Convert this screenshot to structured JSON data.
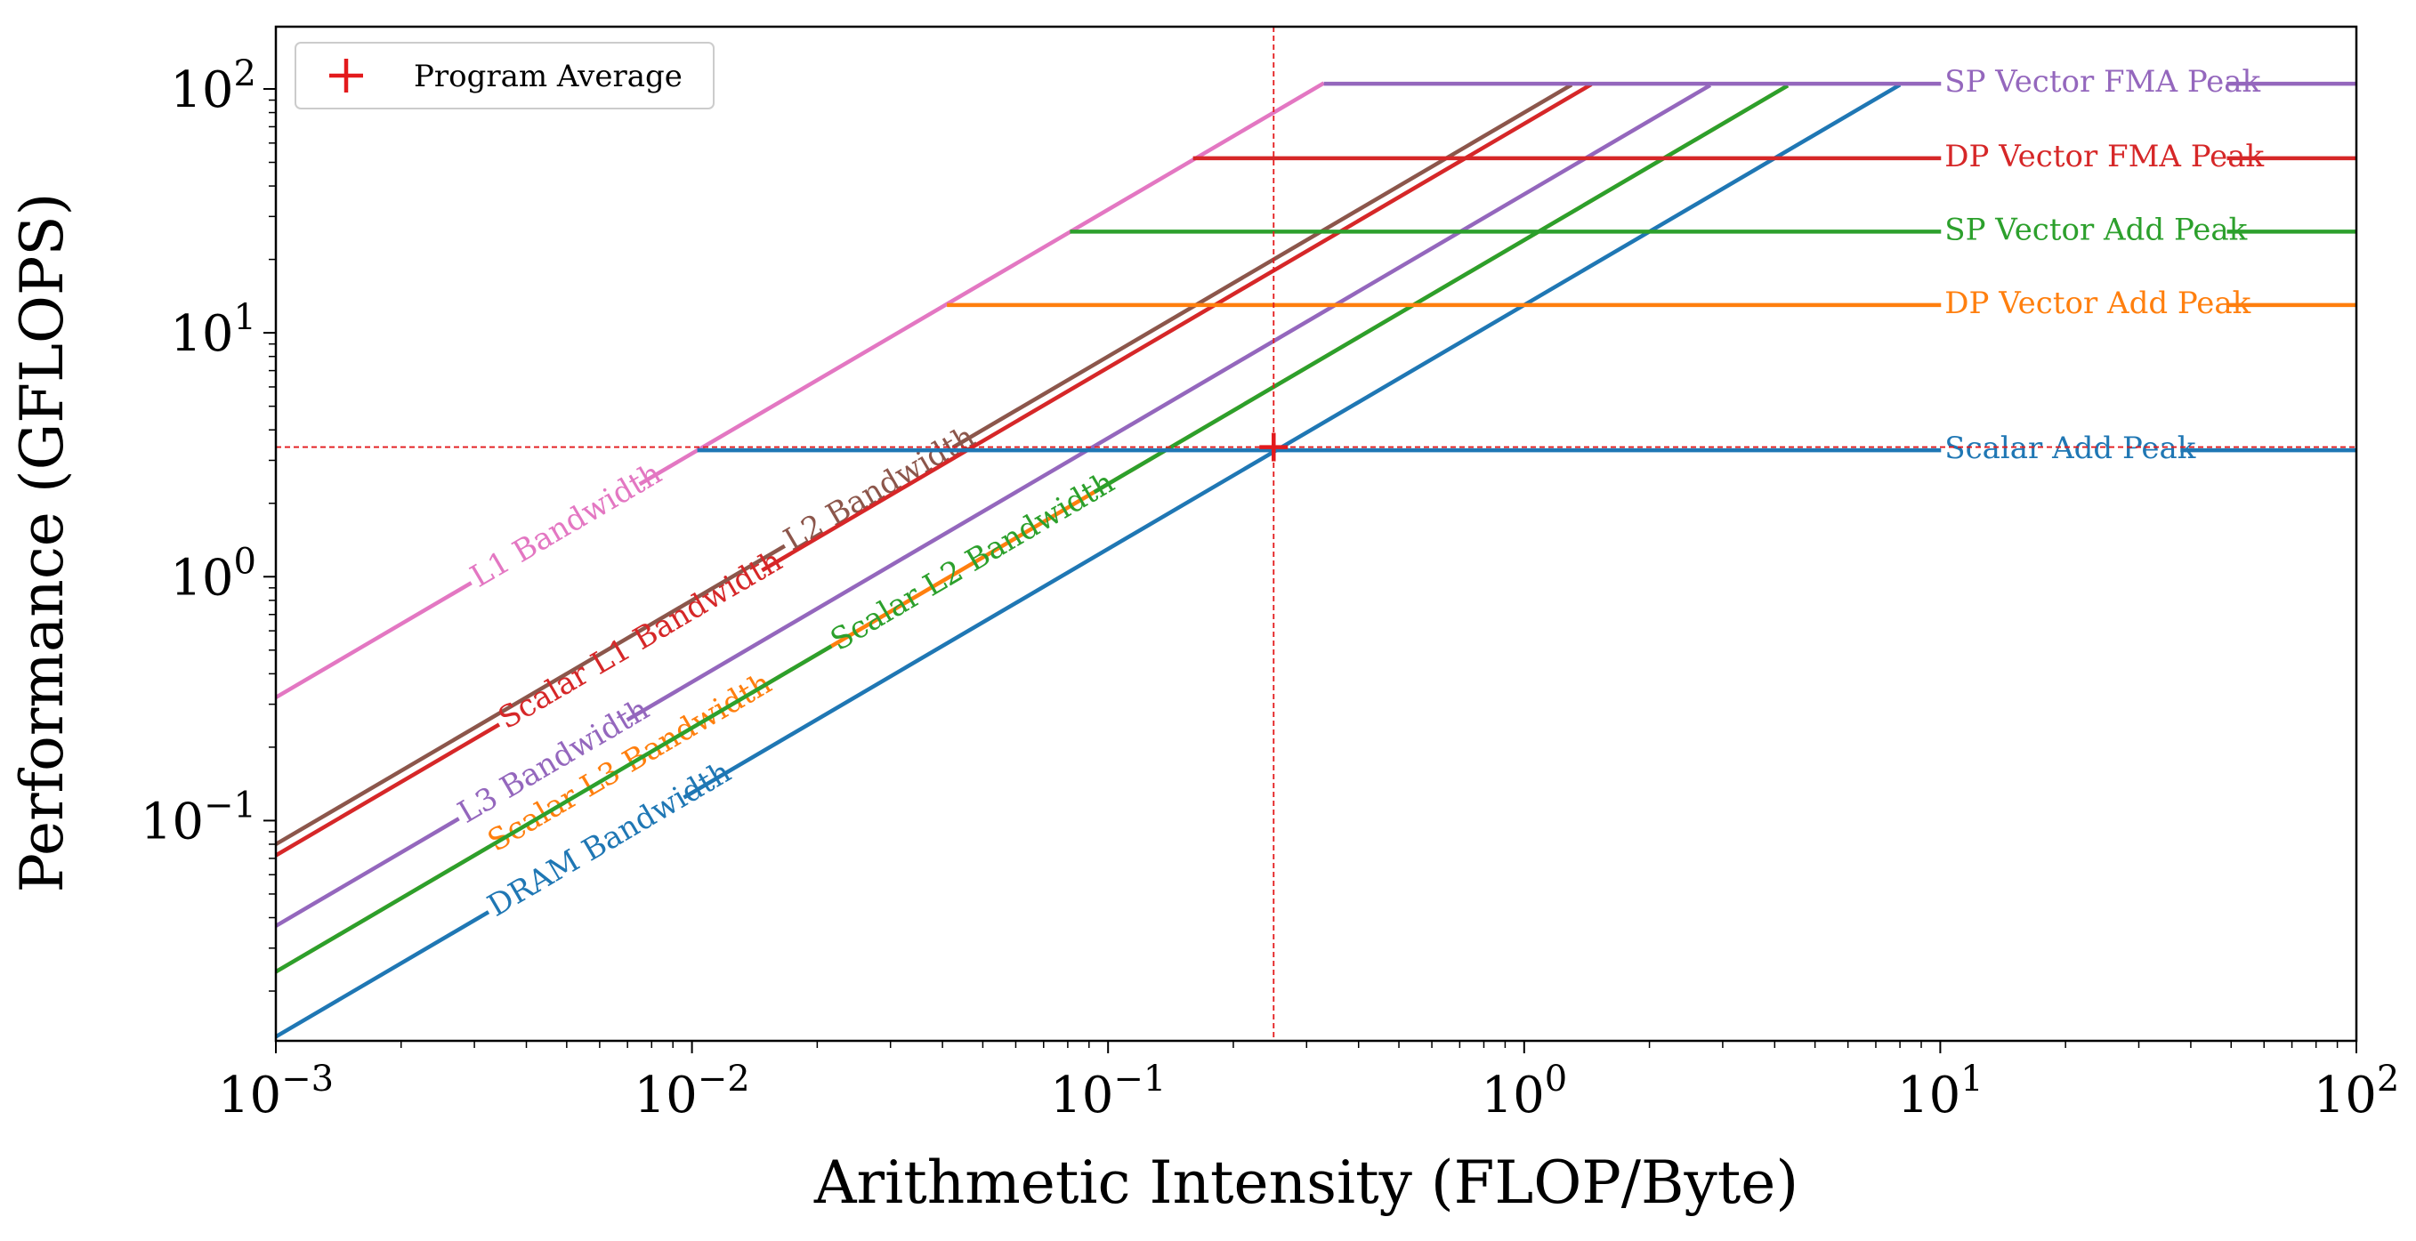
{
  "chart_data": {
    "type": "line",
    "title": "",
    "xlabel": "Arithmetic Intensity (FLOP/Byte)",
    "ylabel": "Performance (GFLOPS)",
    "xscale": "log",
    "yscale": "log",
    "xlim": [
      0.001,
      100
    ],
    "ylim": [
      0.0125,
      180
    ],
    "x_ticks": [
      {
        "value": 0.001,
        "base": "10",
        "exp": "−3"
      },
      {
        "value": 0.01,
        "base": "10",
        "exp": "−2"
      },
      {
        "value": 0.1,
        "base": "10",
        "exp": "−1"
      },
      {
        "value": 1,
        "base": "10",
        "exp": "0"
      },
      {
        "value": 10,
        "base": "10",
        "exp": "1"
      },
      {
        "value": 100,
        "base": "10",
        "exp": "2"
      }
    ],
    "y_ticks": [
      {
        "value": 100,
        "base": "10",
        "exp": "2"
      },
      {
        "value": 10,
        "base": "10",
        "exp": "1"
      },
      {
        "value": 1,
        "base": "10",
        "exp": "0"
      },
      {
        "value": 0.1,
        "base": "10",
        "exp": "−1"
      }
    ],
    "grid": false,
    "legend_position": "top-left",
    "legend": [
      {
        "label": "Program Average",
        "marker": "+",
        "color": "#e31a1c"
      }
    ],
    "program_average": {
      "x": 0.25,
      "y": 3.4
    },
    "bandwidth_ceilings": [
      {
        "label": "L1 Bandwidth",
        "slope_gb_s": 320,
        "x_end": 0.33,
        "color": "#e377c2",
        "label_x": 0.003
      },
      {
        "label": "L2 Bandwidth",
        "slope_gb_s": 80,
        "x_end": 1.3,
        "color": "#8c564b",
        "label_x": 0.017
      },
      {
        "label": "Scalar L1 Bandwidth",
        "slope_gb_s": 72,
        "x_end": 1.45,
        "color": "#d62728",
        "label_x": 0.0035
      },
      {
        "label": "L3 Bandwidth",
        "slope_gb_s": 37,
        "x_end": 2.8,
        "color": "#9467bd",
        "label_x": 0.0028
      },
      {
        "label": "Scalar L3 Bandwidth",
        "slope_gb_s": 24,
        "x_end": 4.3,
        "color": "#ff7f0e",
        "label_x": 0.0033
      },
      {
        "label": "Scalar L2 Bandwidth",
        "slope_gb_s": 24,
        "x_end": 4.3,
        "color": "#2ca02c",
        "label_x": 0.022
      },
      {
        "label": "DRAM Bandwidth",
        "slope_gb_s": 13,
        "x_end": 8.0,
        "color": "#1f77b4",
        "label_x": 0.0033
      }
    ],
    "compute_ceilings": [
      {
        "label": "SP Vector FMA Peak",
        "gflops": 105,
        "x_start": 0.33,
        "color": "#9467bd"
      },
      {
        "label": "DP Vector FMA Peak",
        "gflops": 52,
        "x_start": 0.16,
        "color": "#d62728"
      },
      {
        "label": "SP Vector Add Peak",
        "gflops": 26,
        "x_start": 0.081,
        "color": "#2ca02c"
      },
      {
        "label": "DP Vector Add Peak",
        "gflops": 13,
        "x_start": 0.041,
        "color": "#ff7f0e"
      },
      {
        "label": "Scalar Add Peak",
        "gflops": 3.3,
        "x_start": 0.0103,
        "color": "#1f77b4"
      }
    ]
  }
}
